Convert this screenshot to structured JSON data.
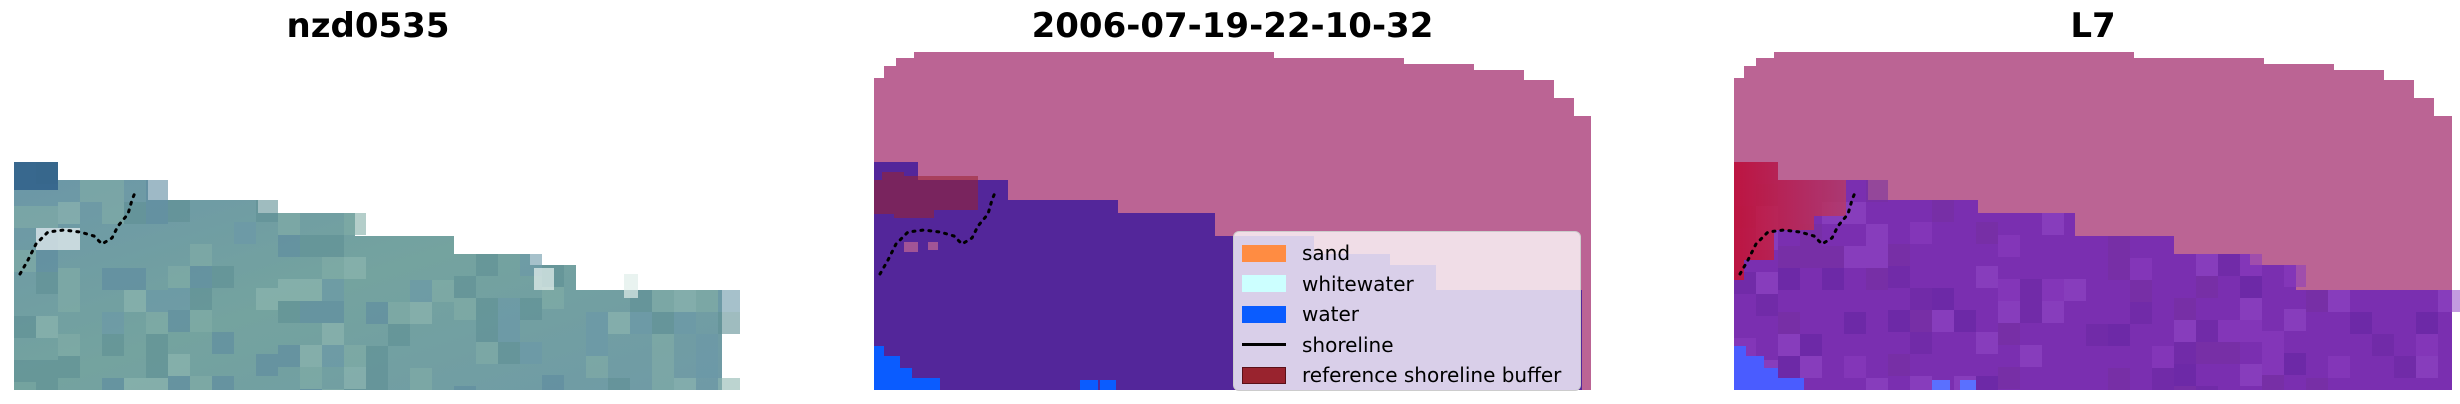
{
  "panels": [
    {
      "title": "nzd0535"
    },
    {
      "title": "2006-07-19-22-10-32"
    },
    {
      "title": "L7"
    }
  ],
  "legend": {
    "items": [
      {
        "label": "sand",
        "color": "#ff8c42"
      },
      {
        "label": "whitewater",
        "color": "#ccffff"
      },
      {
        "label": "water",
        "color": "#0a5cff"
      },
      {
        "label": "shoreline",
        "color": "#000000"
      },
      {
        "label": "reference shoreline buffer",
        "color": "#99232e"
      }
    ]
  },
  "colors": {
    "image_base": "#6f9c9f",
    "land_overlay": "#bb6494",
    "class_dark": "#53269a",
    "prob_purple": "#7a2fb0",
    "buffer_red": "#c8102e",
    "water_blue": "#0a5cff"
  }
}
